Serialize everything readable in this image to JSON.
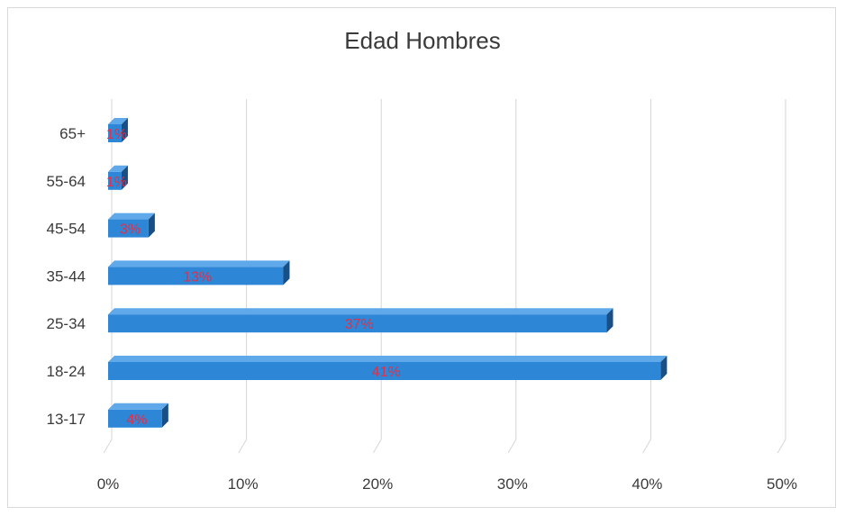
{
  "chart_data": {
    "type": "bar",
    "orientation": "horizontal",
    "title": "Edad Hombres",
    "xlabel": "",
    "ylabel": "",
    "categories": [
      "13-17",
      "18-24",
      "25-34",
      "35-44",
      "45-54",
      "55-64",
      "65+"
    ],
    "values": [
      4,
      41,
      37,
      13,
      3,
      1,
      1
    ],
    "data_labels": [
      "4%",
      "41%",
      "37%",
      "13%",
      "3%",
      "1%",
      "1%"
    ],
    "xlim": [
      0,
      50
    ],
    "x_ticks": [
      "0%",
      "10%",
      "20%",
      "30%",
      "40%",
      "50%"
    ],
    "grid": "vertical gridlines",
    "legend": "none",
    "style": "3D clustered bar"
  },
  "colors": {
    "bar_front": "#2e86d6",
    "bar_top": "#5fa8ea",
    "bar_side": "#1a4f86",
    "data_label": "#e0304a",
    "gridline": "#d6d6d6"
  }
}
